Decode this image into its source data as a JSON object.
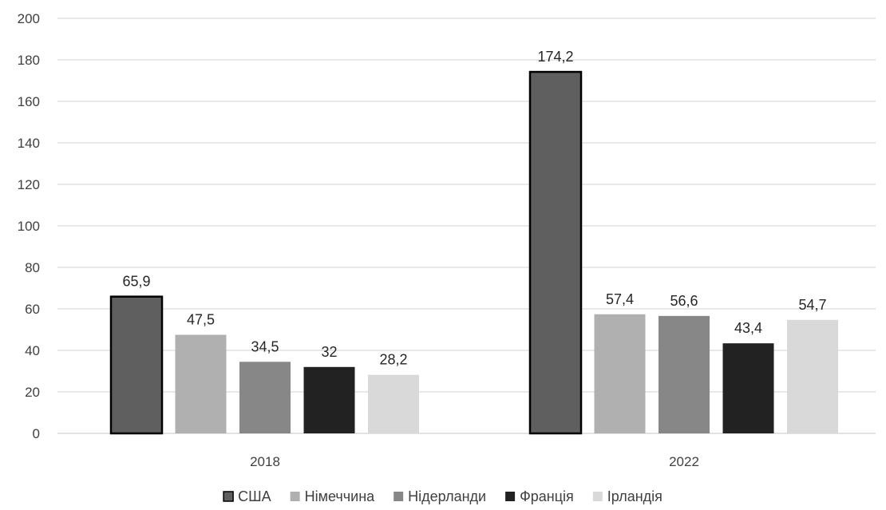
{
  "chart_data": {
    "type": "bar",
    "categories": [
      "2018",
      "2022"
    ],
    "series": [
      {
        "name": "США",
        "values": [
          65.9,
          174.2
        ],
        "labels": [
          "65,9",
          "174,2"
        ],
        "color": "#5f5f5f",
        "outlined": true
      },
      {
        "name": "Німеччина",
        "values": [
          47.5,
          57.4
        ],
        "labels": [
          "47,5",
          "57,4"
        ],
        "color": "#b0b0b0",
        "outlined": false
      },
      {
        "name": "Нідерланди",
        "values": [
          34.5,
          56.6
        ],
        "labels": [
          "34,5",
          "56,6"
        ],
        "color": "#878787",
        "outlined": false
      },
      {
        "name": "Франція",
        "values": [
          32,
          43.4
        ],
        "labels": [
          "32",
          "43,4"
        ],
        "color": "#222222",
        "outlined": false
      },
      {
        "name": "Ірландія",
        "values": [
          28.2,
          54.7
        ],
        "labels": [
          "28,2",
          "54,7"
        ],
        "color": "#d9d9d9",
        "outlined": false
      }
    ],
    "yticks": [
      "0",
      "20",
      "40",
      "60",
      "80",
      "100",
      "120",
      "140",
      "160",
      "180",
      "200"
    ],
    "ylim": [
      0,
      200
    ],
    "title": "",
    "xlabel": "",
    "ylabel": "",
    "grid": true,
    "gridline_color": "#d9d9d9",
    "legend_position": "bottom"
  }
}
